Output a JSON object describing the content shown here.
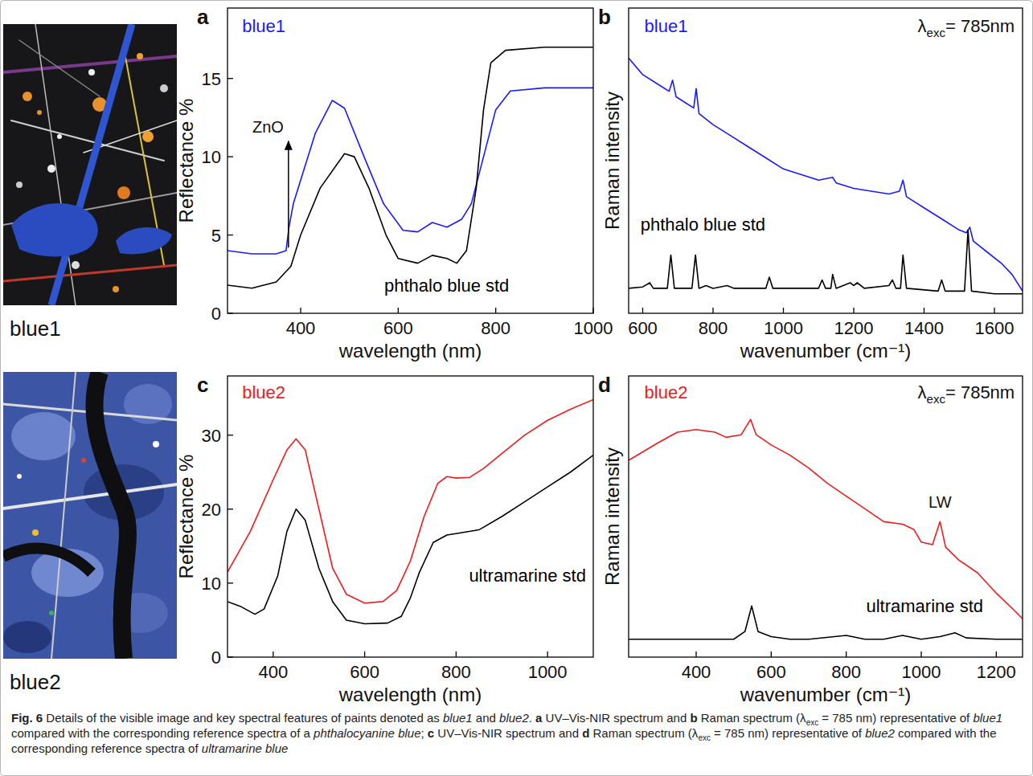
{
  "photos": [
    {
      "label": "blue1"
    },
    {
      "label": "blue2"
    }
  ],
  "chart_data": [
    {
      "type": "line",
      "title": "a",
      "xlabel": "wavelength (nm)",
      "ylabel": "Reflectance %",
      "xlim": [
        250,
        1000
      ],
      "ylim": [
        0,
        19.5
      ],
      "xticks": [
        400,
        600,
        800,
        1000
      ],
      "yticks": [
        0,
        5,
        10,
        15
      ],
      "grid": false,
      "tick_labels": true,
      "series": [
        {
          "name": "blue1",
          "color": "#1a1aff",
          "x": [
            250,
            300,
            350,
            370,
            376,
            385,
            400,
            430,
            465,
            490,
            530,
            570,
            610,
            640,
            670,
            700,
            730,
            750,
            775,
            800,
            830,
            900,
            1000
          ],
          "values": [
            4,
            3.8,
            3.8,
            4.0,
            5.5,
            7,
            8.5,
            11.5,
            13.6,
            13.1,
            10,
            7,
            5.3,
            5.2,
            5.8,
            5.5,
            6,
            7,
            10,
            13,
            14.2,
            14.4,
            14.4
          ]
        },
        {
          "name": "phthalo blue std",
          "color": "#000000",
          "x": [
            250,
            300,
            350,
            380,
            400,
            440,
            490,
            510,
            540,
            575,
            600,
            640,
            670,
            700,
            720,
            740,
            760,
            775,
            790,
            820,
            900,
            1000
          ],
          "values": [
            1.8,
            1.6,
            2,
            3,
            5,
            8,
            10.2,
            10,
            8,
            5,
            3.5,
            3.2,
            3.7,
            3.5,
            3.2,
            4,
            8,
            13,
            16,
            16.8,
            17,
            17
          ]
        }
      ],
      "annotations": [
        {
          "text": "ZnO",
          "x": 375,
          "y": 11.8,
          "arrow_y": [
            4.2,
            11
          ]
        }
      ]
    },
    {
      "type": "line",
      "title": "b",
      "xlabel": "wavenumber (cm⁻¹)",
      "ylabel": "Raman intensity",
      "xlim": [
        560,
        1680
      ],
      "ylim": [
        0,
        110
      ],
      "xticks": [
        600,
        800,
        1000,
        1200,
        1400,
        1600
      ],
      "grid": false,
      "tick_labels": "x",
      "series": [
        {
          "name": "blue1",
          "color": "#1a1aff",
          "x": [
            560,
            600,
            650,
            675,
            685,
            695,
            720,
            745,
            752,
            760,
            800,
            850,
            900,
            950,
            1000,
            1050,
            1100,
            1140,
            1150,
            1200,
            1250,
            1300,
            1330,
            1340,
            1350,
            1400,
            1450,
            1500,
            1520,
            1530,
            1540,
            1580,
            1620,
            1650,
            1680
          ],
          "values": [
            92,
            86,
            82,
            80,
            84,
            78,
            76,
            74,
            81,
            72,
            68,
            64,
            60,
            56,
            52,
            50,
            48,
            49,
            47,
            45,
            44,
            43,
            44,
            48,
            42,
            38,
            34,
            30,
            29,
            31,
            26,
            22,
            18,
            14,
            8
          ]
        },
        {
          "name": "phthalo blue std",
          "color": "#000000",
          "x": [
            560,
            600,
            620,
            630,
            670,
            680,
            690,
            740,
            750,
            760,
            780,
            800,
            840,
            860,
            950,
            960,
            970,
            1100,
            1110,
            1120,
            1135,
            1140,
            1150,
            1190,
            1200,
            1210,
            1230,
            1300,
            1310,
            1320,
            1333,
            1340,
            1350,
            1440,
            1450,
            1460,
            1515,
            1525,
            1535,
            1600,
            1680
          ],
          "values": [
            9,
            9.5,
            11,
            9,
            9,
            21,
            9,
            9,
            21,
            9,
            10,
            9,
            10,
            9,
            9,
            13,
            9,
            9,
            12,
            9,
            9,
            14,
            9,
            11,
            10,
            11,
            9,
            10,
            12,
            9,
            9,
            21,
            9,
            8,
            12,
            8,
            8,
            30,
            8,
            7,
            7
          ]
        }
      ],
      "annotations": [
        {
          "prefix": "λ",
          "subscript": "exc",
          "text": "= 785nm"
        }
      ]
    },
    {
      "type": "line",
      "title": "c",
      "xlabel": "wavelength (nm)",
      "ylabel": "Reflectance %",
      "xlim": [
        300,
        1100
      ],
      "ylim": [
        0,
        38
      ],
      "xticks": [
        400,
        600,
        800,
        1000
      ],
      "yticks": [
        0,
        10,
        20,
        30
      ],
      "grid": false,
      "tick_labels": true,
      "series": [
        {
          "name": "blue2",
          "color": "#ee1c1c",
          "x": [
            300,
            350,
            400,
            430,
            450,
            470,
            500,
            530,
            560,
            600,
            640,
            670,
            700,
            730,
            760,
            780,
            800,
            830,
            860,
            900,
            950,
            1000,
            1050,
            1100
          ],
          "values": [
            11.5,
            17,
            24,
            28,
            29.5,
            28,
            20,
            12,
            8.5,
            7.3,
            7.5,
            9,
            13,
            19,
            23.5,
            24.4,
            24.2,
            24.3,
            25.5,
            27.5,
            30,
            32,
            33.5,
            34.8
          ]
        },
        {
          "name": "ultramarine std",
          "color": "#000000",
          "x": [
            300,
            330,
            360,
            380,
            410,
            430,
            450,
            470,
            500,
            530,
            560,
            600,
            650,
            680,
            700,
            720,
            750,
            780,
            800,
            850,
            900,
            950,
            1000,
            1050,
            1100
          ],
          "values": [
            7.5,
            6.8,
            5.8,
            6.5,
            11,
            17,
            20,
            18.5,
            12,
            7.5,
            5,
            4.5,
            4.6,
            5.5,
            8,
            11.5,
            15.5,
            16.5,
            16.7,
            17.2,
            19,
            21,
            23,
            25,
            27.3
          ]
        }
      ]
    },
    {
      "type": "line",
      "title": "d",
      "xlabel": "wavenumber (cm⁻¹)",
      "ylabel": "Raman intensity",
      "xlim": [
        220,
        1270
      ],
      "ylim": [
        0,
        110
      ],
      "xticks": [
        400,
        600,
        800,
        1000,
        1200
      ],
      "grid": false,
      "tick_labels": "x",
      "series": [
        {
          "name": "blue2",
          "color": "#ee1c1c",
          "x": [
            220,
            300,
            350,
            400,
            450,
            480,
            520,
            545,
            560,
            600,
            650,
            700,
            750,
            800,
            850,
            900,
            950,
            980,
            1000,
            1030,
            1050,
            1065,
            1100,
            1150,
            1200,
            1250,
            1270
          ],
          "values": [
            77,
            84,
            88,
            89,
            88,
            86,
            87,
            93,
            87,
            83,
            79,
            74,
            68,
            63,
            58,
            53,
            52,
            50,
            45,
            44,
            53,
            43,
            38,
            33,
            25,
            18,
            15
          ]
        },
        {
          "name": "ultramarine std",
          "color": "#000000",
          "x": [
            220,
            300,
            400,
            500,
            530,
            548,
            565,
            600,
            650,
            700,
            800,
            850,
            900,
            950,
            1000,
            1050,
            1090,
            1120,
            1200,
            1270
          ],
          "values": [
            7,
            7,
            7,
            7,
            10,
            20,
            10,
            8,
            7,
            7,
            8.5,
            7,
            7,
            8.5,
            7,
            8,
            9.5,
            7.5,
            7,
            7
          ]
        }
      ],
      "annotations": [
        {
          "prefix": "λ",
          "subscript": "exc",
          "text": "= 785nm"
        },
        {
          "text": "LW",
          "x": 1050,
          "y": 60
        }
      ]
    }
  ],
  "caption": {
    "runs": [
      {
        "text": "Fig. 6",
        "style": "bold"
      },
      {
        "text": "  Details of the visible image and key spectral features of paints denoted as ",
        "style": "plain"
      },
      {
        "text": "blue1",
        "style": "italic"
      },
      {
        "text": " and ",
        "style": "plain"
      },
      {
        "text": "blue2",
        "style": "italic"
      },
      {
        "text": ". ",
        "style": "plain"
      },
      {
        "text": "a",
        "style": "bold"
      },
      {
        "text": " UV–Vis-NIR spectrum and ",
        "style": "plain"
      },
      {
        "text": "b",
        "style": "bold"
      },
      {
        "text": " Raman spectrum (λ",
        "style": "plain"
      },
      {
        "text": "exc",
        "style": "sub"
      },
      {
        "text": " = 785 nm) representative of ",
        "style": "plain"
      },
      {
        "text": "blue1",
        "style": "italic"
      },
      {
        "text": " compared with the corresponding reference spectra of a ",
        "style": "plain"
      },
      {
        "text": "phthalocyanine blue",
        "style": "italic"
      },
      {
        "text": "; ",
        "style": "plain"
      },
      {
        "text": "c",
        "style": "bold"
      },
      {
        "text": " UV–Vis-NIR spectrum and ",
        "style": "plain"
      },
      {
        "text": "d",
        "style": "bold"
      },
      {
        "text": " Raman spectrum (λ",
        "style": "plain"
      },
      {
        "text": "exc",
        "style": "sub"
      },
      {
        "text": " = 785 nm) representative of ",
        "style": "plain"
      },
      {
        "text": "blue2",
        "style": "italic"
      },
      {
        "text": " compared with the corresponding reference spectra of ",
        "style": "plain"
      },
      {
        "text": "ultramarine blue",
        "style": "italic"
      }
    ]
  }
}
